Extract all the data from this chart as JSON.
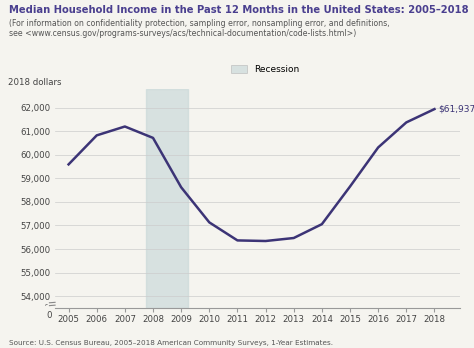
{
  "title": "Median Household Income in the Past 12 Months in the United States: 2005–2018",
  "subtitle_line1": "(For information on confidentiality protection, sampling error, nonsampling error, and definitions,",
  "subtitle_line2": "see <www.census.gov/programs-surveys/acs/technical-documentation/code-lists.html>)",
  "title_color": "#4a3f8f",
  "subtitle_color": "#555555",
  "years": [
    2005,
    2006,
    2007,
    2008,
    2009,
    2010,
    2011,
    2012,
    2013,
    2014,
    2015,
    2016,
    2017,
    2018
  ],
  "values": [
    59591,
    60822,
    61198,
    60715,
    58620,
    57131,
    56366,
    56341,
    56468,
    57055,
    58652,
    60309,
    61372,
    61937
  ],
  "line_color": "#3c3476",
  "recession_start": 2007.75,
  "recession_end": 2009.25,
  "recession_color": "#c8d8d8",
  "recession_alpha": 0.65,
  "ylabel": "2018 dollars",
  "ytick_vals": [
    54000,
    55000,
    56000,
    57000,
    58000,
    59000,
    60000,
    61000,
    62000
  ],
  "ytick_labels": [
    "54,000",
    "55,000",
    "56,000",
    "57,000",
    "58,000",
    "59,000",
    "60,000",
    "61,000",
    "62,000"
  ],
  "ymin": 53500,
  "ymax": 62800,
  "xmin": 2004.5,
  "xmax": 2018.9,
  "last_label": "$61,937",
  "legend_label": "Recession",
  "source_text": "Source: U.S. Census Bureau, 2005–2018 American Community Surveys, 1-Year Estimates.",
  "bg_color": "#f5f4ef",
  "line_width": 1.8
}
